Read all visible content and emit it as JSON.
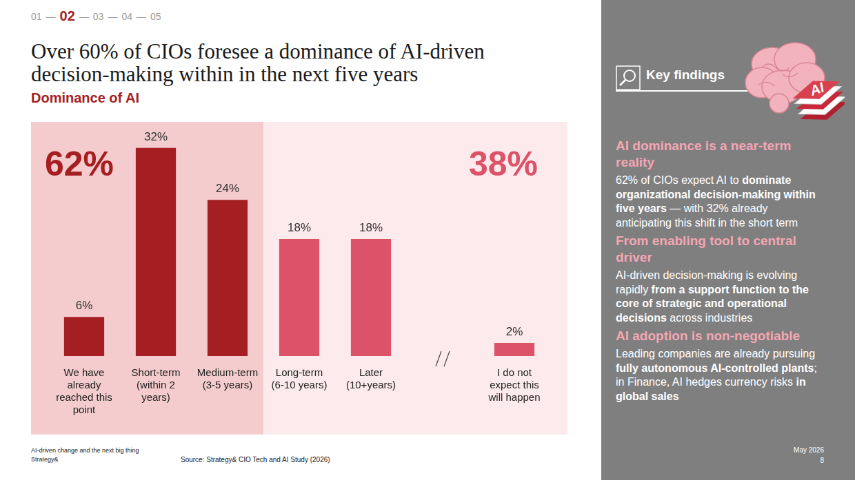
{
  "nav": {
    "items": [
      "01",
      "02",
      "03",
      "04",
      "05"
    ],
    "active": "02",
    "separator": "—"
  },
  "title": "Over 60% of CIOs foresee a dominance of AI-driven decision-making within in the next five years",
  "subtitle": "Dominance of AI",
  "chart_data": {
    "type": "bar",
    "categories": [
      "We have already reached this point",
      "Short-term (within 2 years)",
      "Medium-term (3-5 years)",
      "Long-term (6-10 years)",
      "Later (10+years)",
      null,
      "I do not expect this will happen"
    ],
    "values": [
      6,
      32,
      24,
      18,
      18,
      null,
      2
    ],
    "value_labels": [
      "6%",
      "32%",
      "24%",
      "18%",
      "18%",
      null,
      "2%"
    ],
    "colors": [
      "#A51E22",
      "#A51E22",
      "#A51E22",
      "#DC5369",
      "#DC5369",
      null,
      "#DC5369"
    ],
    "ylim": [
      0,
      36
    ],
    "grid": false,
    "data_labels": true,
    "tick_labels": "x",
    "annotations": [
      {
        "text": "62%",
        "first": "We have already reached this point",
        "last": "Medium-term (3-5 years)",
        "color": "#A51E22"
      },
      {
        "text": "38%",
        "first": "Long-term (6-10 years)",
        "last": "I do not expect this will happen",
        "color": "#DC5369"
      }
    ]
  },
  "footer": {
    "lines": [
      "AI-driven change and the next big thing",
      "Strategy&"
    ],
    "source": "Source: Strategy& CIO Tech and AI Study (2026)",
    "date": "May 2026",
    "page": "8"
  },
  "key_findings": {
    "title": "Key findings",
    "icon_text": "AI",
    "items": [
      {
        "heading": "AI dominance is a near-term reality",
        "body": [
          {
            "text": "62% of CIOs expect AI to "
          },
          {
            "text": "dominate organizational decision-making within five years",
            "bold": true
          },
          {
            "text": " — with 32% already anticipating this shift in the short term"
          }
        ]
      },
      {
        "heading": "From enabling tool to central driver",
        "body": [
          {
            "text": "AI-driven decision-making is evolving rapidly "
          },
          {
            "text": "from a support function to the core of strategic and operational decisions",
            "bold": true
          },
          {
            "text": " across industries"
          }
        ]
      },
      {
        "heading": "AI adoption is non-negotiable",
        "body": [
          {
            "text": "Leading companies are already pursuing "
          },
          {
            "text": "fully autonomous AI-controlled plants",
            "bold": true
          },
          {
            "text": "; in Finance, AI hedges currency risks "
          },
          {
            "text": "in global sales",
            "bold": true
          }
        ]
      }
    ]
  }
}
